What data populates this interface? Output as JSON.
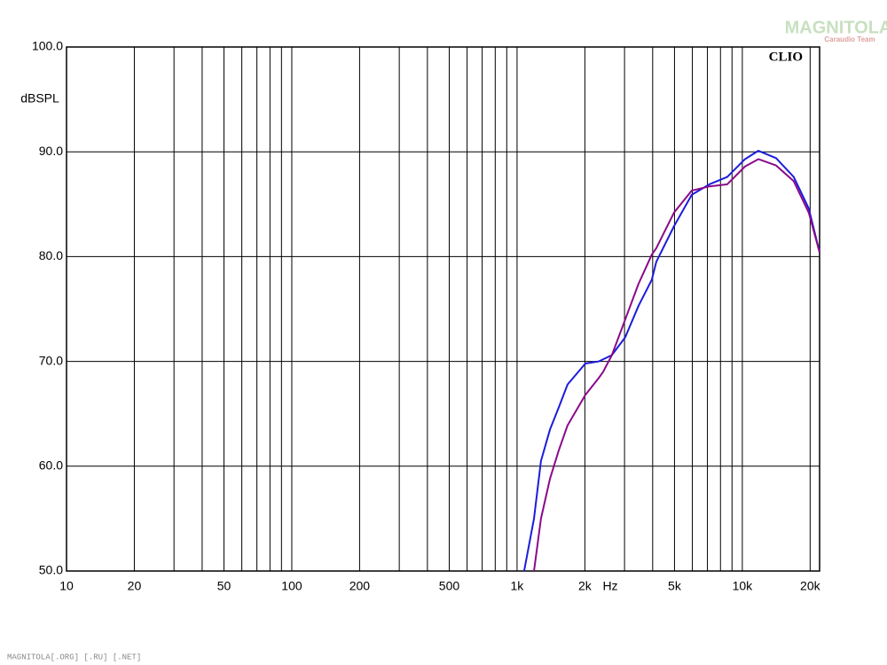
{
  "chart_data": {
    "type": "line",
    "title": "CLIO",
    "watermark": "MAGNITOLA",
    "watermark_sub": "Caraudio Team",
    "footer": "MAGNITOLA[.ORG] [.RU] [.NET]",
    "y_label": "dBSPL",
    "x_label": "Hz",
    "x_scale": "log",
    "grid": true,
    "x": [
      1075,
      1189,
      1277,
      1400,
      1531,
      1676,
      2010,
      2302,
      2410,
      2636,
      3021,
      3461,
      3966,
      4150,
      4975,
      5966,
      7149,
      8572,
      10280,
      11780,
      14120,
      16910,
      19720,
      22030
    ],
    "series": [
      {
        "color": "#1c1cdc",
        "values": [
          50,
          55,
          60.5,
          63.5,
          65.6,
          67.8,
          69.8,
          70,
          70.2,
          70.6,
          72.3,
          75.3,
          77.8,
          79.5,
          82.9,
          85.9,
          86.9,
          87.6,
          89.3,
          90.1,
          89.4,
          87.6,
          84.6,
          80.4
        ]
      },
      {
        "color": "#8a0a8a",
        "values": [
          null,
          50,
          55,
          58.8,
          61.5,
          63.9,
          66.8,
          68.4,
          69,
          70.6,
          74,
          77.4,
          80.2,
          80.8,
          84.2,
          86.3,
          86.7,
          86.9,
          88.6,
          89.3,
          88.7,
          87.2,
          84.2,
          80.4
        ]
      }
    ],
    "xlim": [
      10,
      22030
    ],
    "ylim": [
      50,
      100
    ],
    "xticks": [
      10,
      20,
      50,
      100,
      200,
      500,
      {
        "value": 1000,
        "label": "1k"
      },
      {
        "value": 2000,
        "label": "2k"
      },
      {
        "value": 5000,
        "label": "5k"
      },
      {
        "value": 10000,
        "label": "10k"
      },
      {
        "value": 20000,
        "label": "20k"
      }
    ],
    "x_minor_grid": [
      30,
      40,
      60,
      70,
      80,
      90,
      300,
      400,
      600,
      700,
      800,
      900,
      3000,
      4000,
      6000,
      7000,
      8000,
      9000
    ],
    "yticks": [
      {
        "value": 50,
        "label": "50.0"
      },
      {
        "value": 60,
        "label": "60.0"
      },
      {
        "value": 70,
        "label": "70.0"
      },
      {
        "value": 80,
        "label": "80.0"
      },
      {
        "value": 90,
        "label": "90.0"
      },
      {
        "value": 100,
        "label": "100.0"
      }
    ]
  }
}
